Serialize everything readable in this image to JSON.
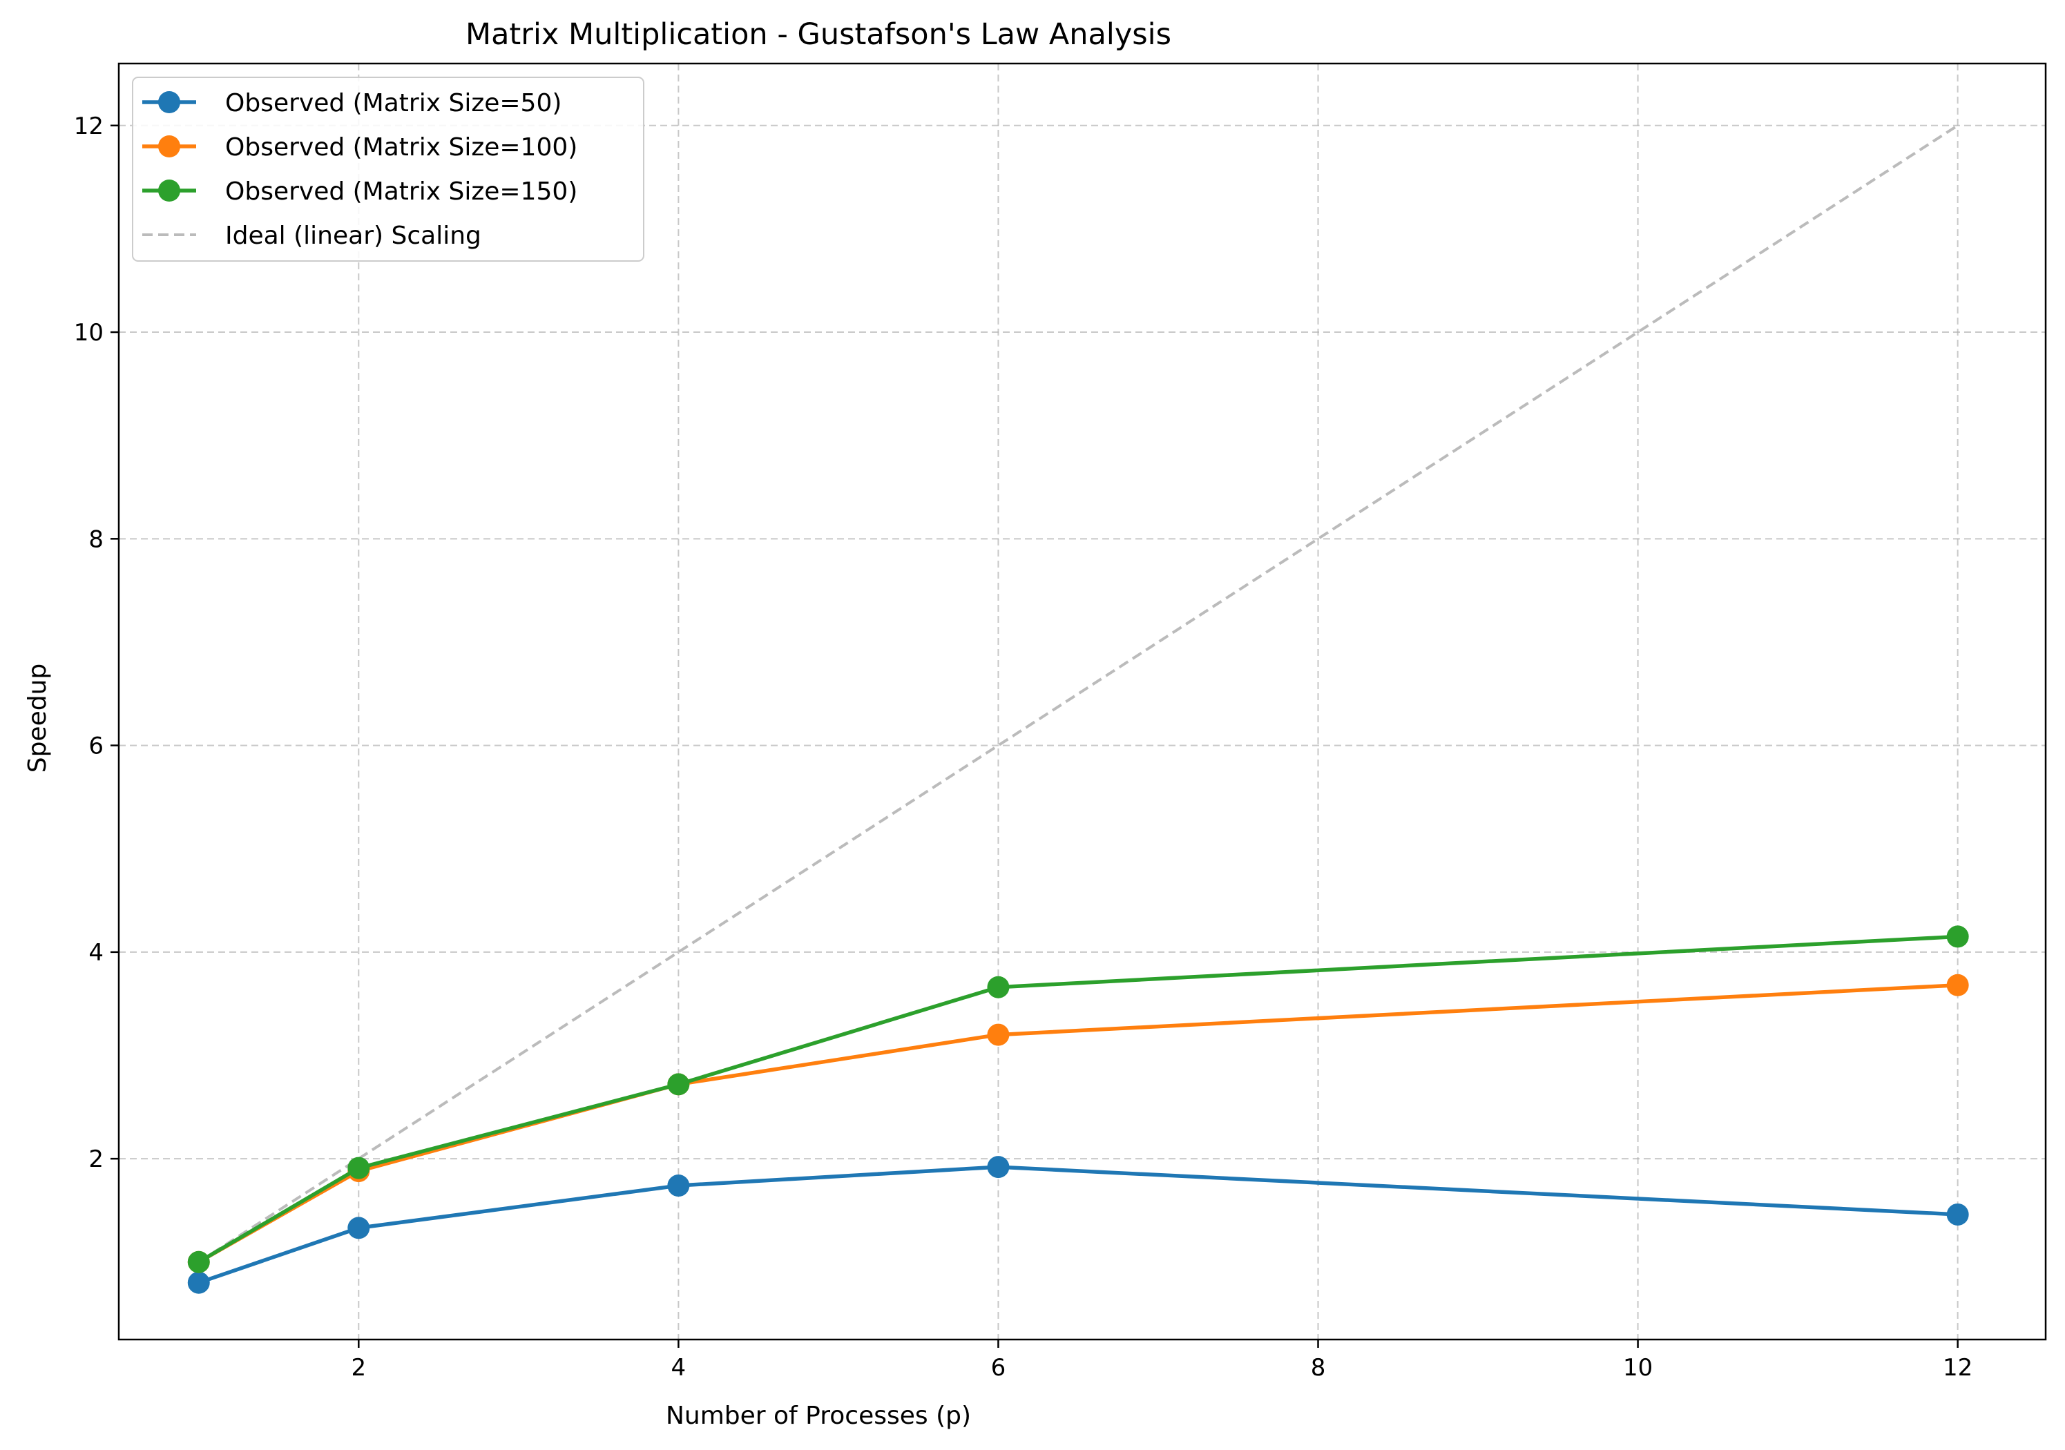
{
  "chart_data": {
    "type": "line",
    "title": "Matrix Multiplication - Gustafson's Law Analysis",
    "xlabel": "Number of Processes (p)",
    "ylabel": "Speedup",
    "xlim": [
      0.5,
      12.55
    ],
    "ylim": [
      0.25,
      12.6
    ],
    "xticks": [
      2,
      4,
      6,
      8,
      10,
      12
    ],
    "yticks": [
      2,
      4,
      6,
      8,
      10,
      12
    ],
    "grid": true,
    "legend_position": "top-left",
    "x": [
      1,
      2,
      4,
      6,
      12
    ],
    "series": [
      {
        "name": "Observed (Matrix Size=50)",
        "color": "#1f77b4",
        "style": "solid",
        "marker": "circle",
        "values": [
          0.8,
          1.33,
          1.74,
          1.92,
          1.46
        ]
      },
      {
        "name": "Observed (Matrix Size=100)",
        "color": "#ff7f0e",
        "style": "solid",
        "marker": "circle",
        "values": [
          1.0,
          1.88,
          2.72,
          3.2,
          3.68
        ]
      },
      {
        "name": "Observed (Matrix Size=150)",
        "color": "#2ca02c",
        "style": "solid",
        "marker": "circle",
        "values": [
          1.0,
          1.91,
          2.72,
          3.66,
          4.15
        ]
      },
      {
        "name": "Ideal (linear) Scaling",
        "color": "#bbbbbb",
        "style": "dashed",
        "marker": "none",
        "values": [
          1,
          2,
          4,
          6,
          12
        ]
      }
    ]
  }
}
